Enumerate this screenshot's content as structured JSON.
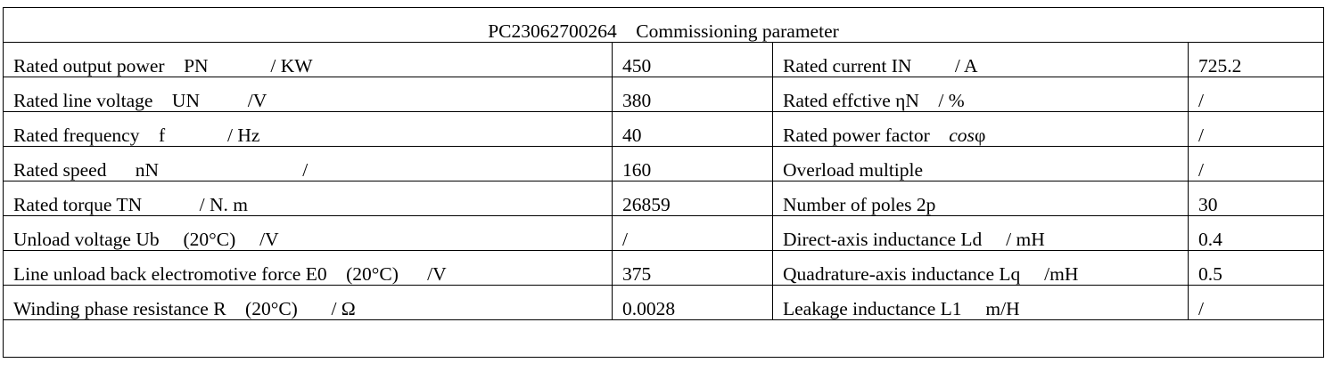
{
  "title": "PC23062700264    Commissioning parameter",
  "rows": [
    {
      "label1": "Rated output power    PN             / KW",
      "value1": "450",
      "label2": "Rated current IN         / A",
      "value2": "725.2"
    },
    {
      "label1": "Rated line voltage    UN          /V",
      "value1": "380",
      "label2": "Rated effctive ηN    / %",
      "value2": "/"
    },
    {
      "label1": "Rated frequency    f             / Hz",
      "value1": "40",
      "label2": "Rated power factor    ",
      "label2_italic": "cos",
      "label2_tail": "φ",
      "value2": "/"
    },
    {
      "label1": "Rated speed      nN                              /",
      "value1": "160",
      "label2": "Overload multiple",
      "value2": "/"
    },
    {
      "label1": "Rated torque TN            / N. m",
      "value1": "26859",
      "label2": "Number of poles 2p",
      "value2": "30"
    },
    {
      "label1": "Unload voltage Ub     (20°C)     /V",
      "value1": "/",
      "label2": "Direct-axis inductance Ld     / mH",
      "value2": "0.4"
    },
    {
      "label1": "Line unload back electromotive force E0    (20°C)      /V",
      "value1": "375",
      "label2": "Quadrature-axis inductance Lq     /mH",
      "value2": "0.5"
    },
    {
      "label1": "Winding phase resistance R    (20°C)       / Ω",
      "value1": "0.0028",
      "label2": "Leakage inductance L1     m/H",
      "value2": "/"
    }
  ]
}
